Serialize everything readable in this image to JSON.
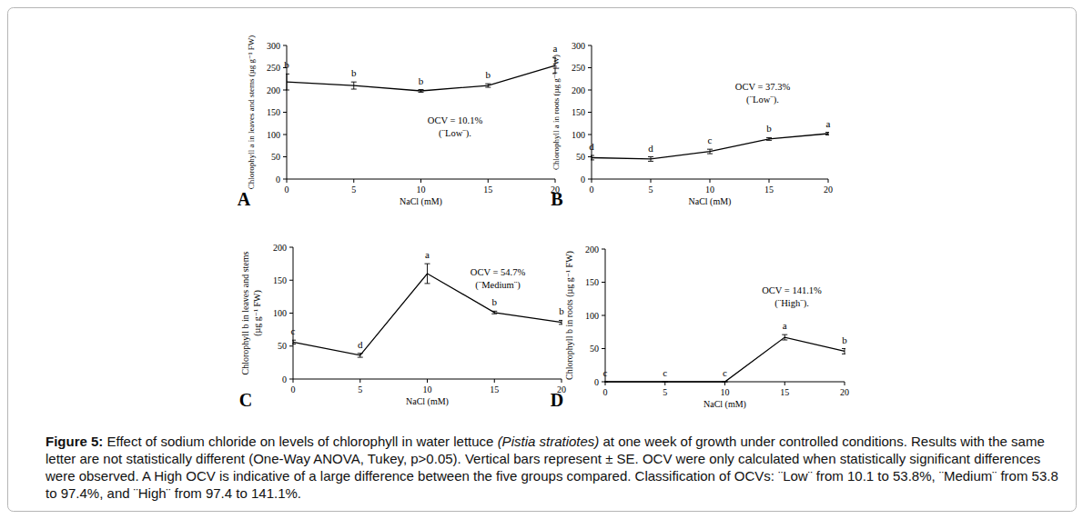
{
  "chart_data": [
    {
      "type": "line",
      "panel": "A",
      "x_label": "NaCl (mM)",
      "y_label": "Chlorophyll a in leaves and stems (µg g⁻¹ FW)",
      "x": [
        0,
        5,
        10,
        15,
        20
      ],
      "values": [
        218,
        210,
        198,
        210,
        255
      ],
      "errors": [
        18,
        8,
        3,
        4,
        18
      ],
      "significance_letters": [
        "b",
        "b",
        "b",
        "b",
        "a"
      ],
      "annotations": [
        "OCV = 10.1%",
        "(¨Low¨)."
      ],
      "xlim": [
        0,
        20
      ],
      "xticks": [
        0,
        5,
        10,
        15,
        20
      ],
      "ylim": [
        0,
        300
      ],
      "yticks": [
        0,
        50,
        100,
        150,
        200,
        250,
        300
      ],
      "color": "#000000"
    },
    {
      "type": "line",
      "panel": "B",
      "x_label": "NaCl (mM)",
      "y_label": "Chlorophyll a in roots (µg g⁻¹ FW)",
      "x": [
        0,
        5,
        10,
        15,
        20
      ],
      "values": [
        48,
        45,
        62,
        90,
        102
      ],
      "errors": [
        5,
        5,
        5,
        3,
        3
      ],
      "significance_letters": [
        "d",
        "d",
        "c",
        "b",
        "a"
      ],
      "annotations": [
        "OCV = 37.3%",
        "(¨Low¨)."
      ],
      "xlim": [
        0,
        20
      ],
      "xticks": [
        0,
        5,
        10,
        15,
        20
      ],
      "ylim": [
        0,
        300
      ],
      "yticks": [
        0,
        50,
        100,
        150,
        200,
        250,
        300
      ],
      "color": "#000000"
    },
    {
      "type": "line",
      "panel": "C",
      "x_label": "NaCl (mM)",
      "y_label": "Chlorophyll b in leaves and stems (µg g⁻¹ FW)",
      "x": [
        0,
        5,
        10,
        15,
        20
      ],
      "values": [
        56,
        36,
        160,
        101,
        86
      ],
      "errors": [
        3,
        3,
        15,
        2,
        3
      ],
      "significance_letters": [
        "c",
        "d",
        "a",
        "b",
        "b"
      ],
      "annotations": [
        "OCV = 54.7%",
        "(¨Medium¨)"
      ],
      "xlim": [
        0,
        20
      ],
      "xticks": [
        0,
        5,
        10,
        15,
        20
      ],
      "ylim": [
        0,
        200
      ],
      "yticks": [
        0,
        50,
        100,
        150,
        200
      ],
      "color": "#000000"
    },
    {
      "type": "line",
      "panel": "D",
      "x_label": "NaCl (mM)",
      "y_label": "Chlorophyll b in roots (µg g⁻¹ FW)",
      "x": [
        0,
        5,
        10,
        15,
        20
      ],
      "values": [
        0,
        0,
        0,
        67,
        46
      ],
      "errors": [
        0,
        0,
        0,
        4,
        4
      ],
      "significance_letters": [
        "c",
        "c",
        "c",
        "a",
        "b"
      ],
      "annotations": [
        "OCV = 141.1%",
        "(¨High¨)."
      ],
      "xlim": [
        0,
        20
      ],
      "xticks": [
        0,
        5,
        10,
        15,
        20
      ],
      "ylim": [
        0,
        200
      ],
      "yticks": [
        0,
        50,
        100,
        150,
        200
      ],
      "color": "#000000"
    }
  ],
  "caption": {
    "label": "Figure 5:",
    "text_before": " Effect of sodium chloride on levels of chlorophyll in water lettuce ",
    "species": "(Pistia stratiotes)",
    "text_after": " at one week of growth under controlled conditions. Results with the same letter are not statistically different (One-Way ANOVA, Tukey, p>0.05). Vertical bars represent ± SE. OCV were only calculated when statistically significant differences were observed.  A High OCV is indicative of a large difference between the five groups compared. Classification of OCVs: ¨Low¨ from 10.1 to 53.8%, ¨Medium¨ from 53.8 to 97.4%, and ¨High¨ from 97.4 to 141.1%."
  }
}
